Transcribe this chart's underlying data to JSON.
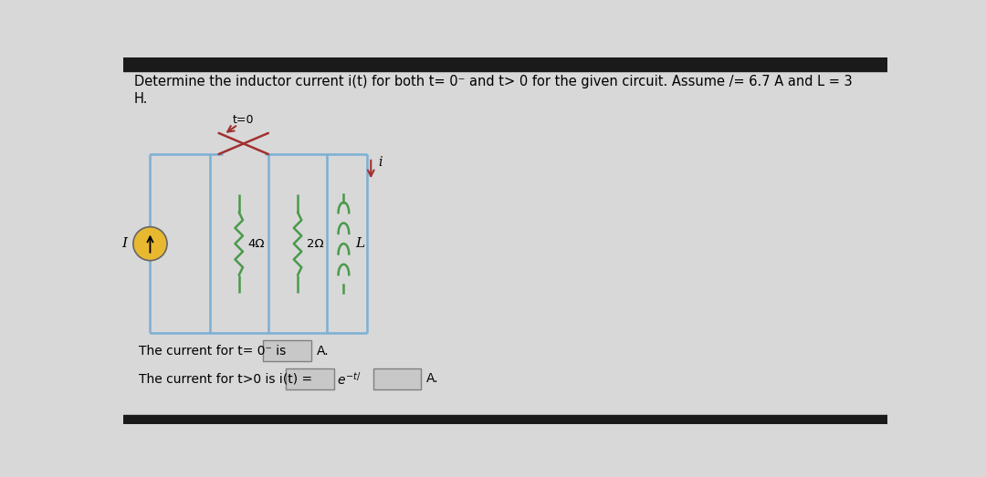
{
  "bg_color": "#d8d8d8",
  "top_bar_color": "#1a1a1a",
  "title_line1": "Determine the inductor current i(t) for both t= 0⁻ and t> 0 for the given circuit. Assume /= 6.7 A and L = 3",
  "title_line2": "H.",
  "text_t0": "The current for t= 0⁻ is",
  "text_tgt0": "The current for t>0 is i(t) =",
  "circuit_color": "#7bafd4",
  "resistor_color": "#4a9a4a",
  "inductor_color": "#4a9a4a",
  "source_fill": "#e8b830",
  "switch_color": "#a03030",
  "arrow_color": "#a03030",
  "title_fontsize": 10.5,
  "box_fill": "#c8c8c8",
  "box_edge": "#808080"
}
